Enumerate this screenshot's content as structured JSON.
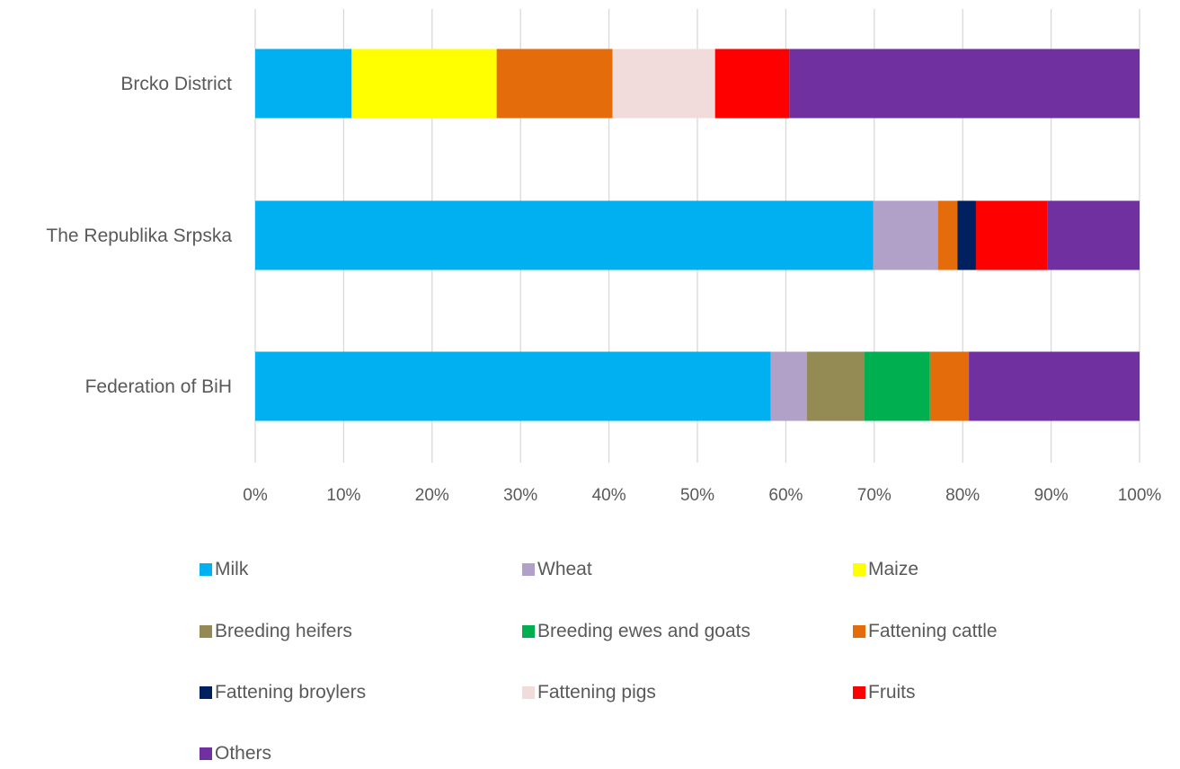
{
  "chart_data": {
    "type": "bar",
    "orientation": "horizontal",
    "stacked": "percent",
    "categories": [
      "Brcko District",
      "The Republika Srpska",
      "Federation of BiH"
    ],
    "xlim": [
      0,
      100
    ],
    "x_ticks": [
      "0%",
      "10%",
      "20%",
      "30%",
      "40%",
      "50%",
      "60%",
      "70%",
      "80%",
      "90%",
      "100%"
    ],
    "grid": "vertical",
    "legend_position": "bottom",
    "series": [
      {
        "name": "Milk",
        "color": "#00B0F0",
        "values": [
          10.9,
          69.9,
          58.3
        ]
      },
      {
        "name": "Wheat",
        "color": "#B1A0C7",
        "values": [
          0,
          7.3,
          4.1
        ]
      },
      {
        "name": "Maize",
        "color": "#FFFF00",
        "values": [
          16.4,
          0,
          0
        ]
      },
      {
        "name": "Breeding heifers",
        "color": "#948A54",
        "values": [
          0,
          0,
          6.5
        ]
      },
      {
        "name": "Breeding ewes and goats",
        "color": "#00B050",
        "values": [
          0,
          0,
          7.4
        ]
      },
      {
        "name": "Fattening cattle",
        "color": "#E46C0A",
        "values": [
          13.1,
          2.2,
          4.4
        ]
      },
      {
        "name": "Fattening broylers",
        "color": "#002060",
        "values": [
          0,
          2.1,
          0
        ]
      },
      {
        "name": "Fattening pigs",
        "color": "#F2DCDB",
        "values": [
          11.6,
          0,
          0
        ]
      },
      {
        "name": "Fruits",
        "color": "#FF0000",
        "values": [
          8.4,
          8.1,
          0
        ]
      },
      {
        "name": "Others",
        "color": "#7030A0",
        "values": [
          39.6,
          10.4,
          19.3
        ]
      }
    ]
  }
}
